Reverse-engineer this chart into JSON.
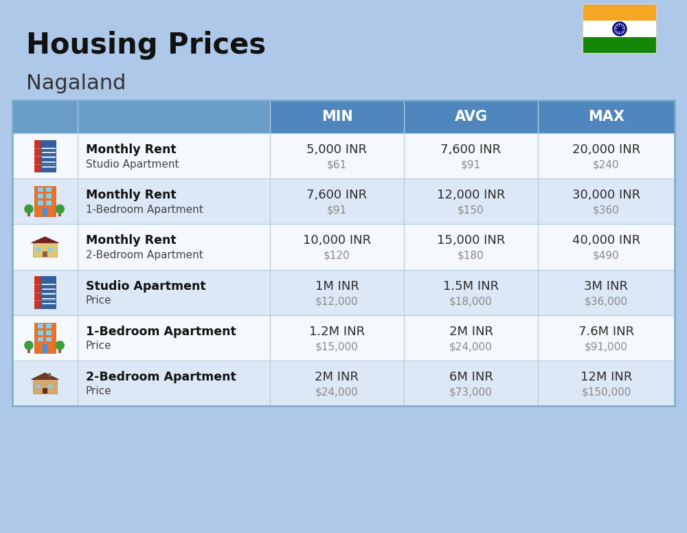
{
  "title": "Housing Prices",
  "subtitle": "Nagaland",
  "background_color": "#adc8e8",
  "header_bg_color": "#4f86be",
  "header_text_color": "#ffffff",
  "row_bg_colors": [
    "#f5f8fc",
    "#dce8f5",
    "#f5f8fc",
    "#dce8f5",
    "#f5f8fc",
    "#dce8f5"
  ],
  "col_header_labels": [
    "MIN",
    "AVG",
    "MAX"
  ],
  "rows": [
    {
      "bold_label": "Monthly Rent",
      "sub_label": "Studio Apartment",
      "min_inr": "5,000 INR",
      "min_usd": "$61",
      "avg_inr": "7,600 INR",
      "avg_usd": "$91",
      "max_inr": "20,000 INR",
      "max_usd": "$240",
      "icon": "blue_office"
    },
    {
      "bold_label": "Monthly Rent",
      "sub_label": "1-Bedroom Apartment",
      "min_inr": "7,600 INR",
      "min_usd": "$91",
      "avg_inr": "12,000 INR",
      "avg_usd": "$150",
      "max_inr": "30,000 INR",
      "max_usd": "$360",
      "icon": "orange_apartment"
    },
    {
      "bold_label": "Monthly Rent",
      "sub_label": "2-Bedroom Apartment",
      "min_inr": "10,000 INR",
      "min_usd": "$120",
      "avg_inr": "15,000 INR",
      "avg_usd": "$180",
      "max_inr": "40,000 INR",
      "max_usd": "$490",
      "icon": "beige_house"
    },
    {
      "bold_label": "Studio Apartment",
      "sub_label": "Price",
      "min_inr": "1M INR",
      "min_usd": "$12,000",
      "avg_inr": "1.5M INR",
      "avg_usd": "$18,000",
      "max_inr": "3M INR",
      "max_usd": "$36,000",
      "icon": "blue_office"
    },
    {
      "bold_label": "1-Bedroom Apartment",
      "sub_label": "Price",
      "min_inr": "1.2M INR",
      "min_usd": "$15,000",
      "avg_inr": "2M INR",
      "avg_usd": "$24,000",
      "max_inr": "7.6M INR",
      "max_usd": "$91,000",
      "icon": "orange_apartment"
    },
    {
      "bold_label": "2-Bedroom Apartment",
      "sub_label": "Price",
      "min_inr": "2M INR",
      "min_usd": "$24,000",
      "avg_inr": "6M INR",
      "avg_usd": "$73,000",
      "max_inr": "12M INR",
      "max_usd": "$150,000",
      "icon": "brown_house"
    }
  ],
  "inr_text_color": "#2c2c2c",
  "usd_text_color": "#8a8a8a",
  "label_bold_color": "#111111",
  "label_sub_color": "#444444",
  "grid_line_color": "#b8cfe0",
  "flag_saffron": "#f5a623",
  "flag_white": "#ffffff",
  "flag_green": "#138808",
  "flag_navy": "#000080"
}
